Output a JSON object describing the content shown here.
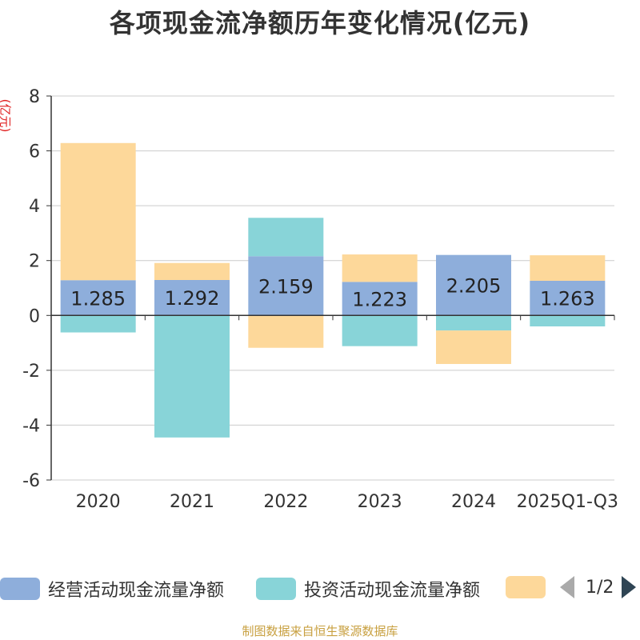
{
  "title": "各项现金流净额历年变化情况(亿元)",
  "footer": "制图数据来自恒生聚源数据库",
  "legend_pager": "1/2",
  "chart_data": {
    "type": "bar",
    "stacked": true,
    "title": "各项现金流净额历年变化情况(亿元)",
    "ylabel": "(亿元)",
    "ylim": [
      -6,
      8
    ],
    "yticks": [
      -6,
      -4,
      -2,
      0,
      2,
      4,
      6,
      8
    ],
    "categories": [
      "2020",
      "2021",
      "2022",
      "2023",
      "2024",
      "2025Q1-Q3"
    ],
    "series": [
      {
        "name": "经营活动现金流量净额",
        "color": "#8eaedb",
        "values": [
          1.285,
          1.292,
          2.159,
          1.223,
          2.205,
          1.263
        ],
        "labels": true
      },
      {
        "name": "投资活动现金流量净额",
        "color": "#88d4d8",
        "values": [
          -0.62,
          -4.45,
          1.4,
          -1.12,
          -0.55,
          -0.4
        ],
        "labels": false
      },
      {
        "name": "",
        "color": "#fdd89a",
        "values": [
          5.0,
          0.62,
          -1.18,
          1.0,
          -1.22,
          0.93
        ],
        "labels": false
      }
    ]
  }
}
